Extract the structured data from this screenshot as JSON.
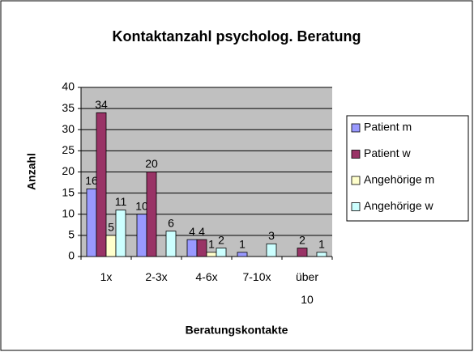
{
  "chart_data": {
    "type": "bar",
    "title": "Kontaktanzahl psycholog. Beratung",
    "x_label": "Beratungskontakte",
    "y_label": "Anzahl",
    "categories": [
      "1x",
      "2-3x",
      "4-6x",
      "7-10x",
      "über 10"
    ],
    "series": [
      {
        "name": "Patient m",
        "color": "#9999ff",
        "values": [
          16,
          10,
          4,
          1,
          null
        ]
      },
      {
        "name": "Patient w",
        "color": "#993366",
        "values": [
          34,
          20,
          4,
          null,
          2
        ]
      },
      {
        "name": "Angehörige m",
        "color": "#ffffcc",
        "values": [
          5,
          null,
          1,
          null,
          null
        ]
      },
      {
        "name": "Angehörige w",
        "color": "#ccffff",
        "values": [
          11,
          6,
          2,
          3,
          1
        ]
      }
    ],
    "ylim": [
      0,
      40
    ],
    "yticks": [
      0,
      5,
      10,
      15,
      20,
      25,
      30,
      35,
      40
    ],
    "grid": true,
    "legend": "right"
  }
}
